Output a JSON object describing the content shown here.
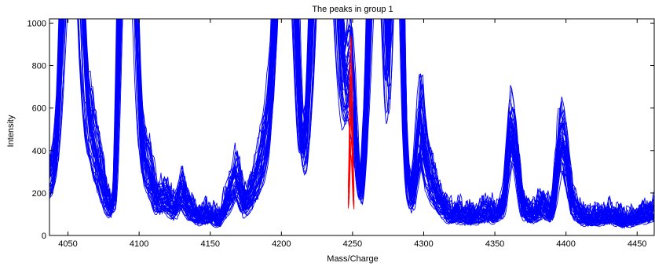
{
  "chart_data": {
    "type": "line",
    "title": "The peaks in group 1",
    "xlabel": "Mass/Charge",
    "ylabel": "Intensity",
    "xlim": [
      4037,
      4462
    ],
    "ylim": [
      0,
      1020
    ],
    "xticks": [
      4050,
      4100,
      4150,
      4200,
      4250,
      4300,
      4350,
      4400,
      4450
    ],
    "xtick_labels": [
      "4050",
      "4100",
      "4150",
      "4200",
      "4250",
      "4300",
      "4350",
      "4400",
      "4450"
    ],
    "yticks": [
      0,
      200,
      400,
      600,
      800,
      1000
    ],
    "ytick_labels": [
      "0",
      "200",
      "400",
      "600",
      "800",
      "1000"
    ],
    "grid": false,
    "series_color": "#0000ff",
    "highlight_color": "#ff0000",
    "spectra_count": 40,
    "baseline": [
      [
        4037,
        260
      ],
      [
        4045,
        280
      ],
      [
        4050,
        330
      ],
      [
        4054,
        420
      ],
      [
        4060,
        330
      ],
      [
        4066,
        480
      ],
      [
        4070,
        400
      ],
      [
        4076,
        200
      ],
      [
        4083,
        40
      ],
      [
        4087,
        500
      ],
      [
        4093,
        530
      ],
      [
        4100,
        420
      ],
      [
        4108,
        300
      ],
      [
        4112,
        170
      ],
      [
        4118,
        180
      ],
      [
        4125,
        120
      ],
      [
        4130,
        220
      ],
      [
        4135,
        120
      ],
      [
        4142,
        80
      ],
      [
        4150,
        90
      ],
      [
        4156,
        60
      ],
      [
        4162,
        160
      ],
      [
        4168,
        290
      ],
      [
        4174,
        140
      ],
      [
        4180,
        220
      ],
      [
        4186,
        370
      ],
      [
        4192,
        560
      ],
      [
        4197,
        700
      ],
      [
        4203,
        760
      ],
      [
        4208,
        280
      ],
      [
        4213,
        70
      ],
      [
        4217,
        60
      ],
      [
        4222,
        170
      ],
      [
        4227,
        420
      ],
      [
        4233,
        300
      ],
      [
        4238,
        150
      ],
      [
        4243,
        220
      ],
      [
        4248,
        270
      ],
      [
        4252,
        200
      ],
      [
        4256,
        160
      ],
      [
        4261,
        500
      ],
      [
        4266,
        520
      ],
      [
        4271,
        210
      ],
      [
        4277,
        140
      ],
      [
        4283,
        470
      ],
      [
        4287,
        240
      ],
      [
        4292,
        180
      ],
      [
        4298,
        580
      ],
      [
        4302,
        360
      ],
      [
        4307,
        230
      ],
      [
        4312,
        150
      ],
      [
        4318,
        90
      ],
      [
        4325,
        95
      ],
      [
        4332,
        80
      ],
      [
        4339,
        90
      ],
      [
        4345,
        110
      ],
      [
        4350,
        90
      ],
      [
        4356,
        130
      ],
      [
        4361,
        400
      ],
      [
        4365,
        300
      ],
      [
        4370,
        120
      ],
      [
        4377,
        90
      ],
      [
        4384,
        140
      ],
      [
        4390,
        90
      ],
      [
        4396,
        390
      ],
      [
        4400,
        330
      ],
      [
        4405,
        140
      ],
      [
        4411,
        80
      ],
      [
        4418,
        70
      ],
      [
        4425,
        80
      ],
      [
        4432,
        90
      ],
      [
        4440,
        60
      ],
      [
        4447,
        70
      ],
      [
        4455,
        90
      ],
      [
        4462,
        110
      ]
    ],
    "peaks": [
      {
        "x": 4053,
        "height": 2600,
        "width": 5
      },
      {
        "x": 4092,
        "height": 2600,
        "width": 4
      },
      {
        "x": 4204,
        "height": 2600,
        "width": 5
      },
      {
        "x": 4231,
        "height": 2600,
        "width": 7
      },
      {
        "x": 4268,
        "height": 2600,
        "width": 4
      },
      {
        "x": 4281,
        "height": 2600,
        "width": 3
      },
      {
        "x": 4249,
        "height": 520,
        "width": 3
      },
      {
        "x": 4362,
        "height": 150,
        "width": 3
      },
      {
        "x": 4397,
        "height": 120,
        "width": 3
      }
    ],
    "highlight_peak": {
      "x": 4249,
      "values_max": [
        940,
        820,
        760,
        650,
        560,
        450,
        380
      ]
    }
  }
}
